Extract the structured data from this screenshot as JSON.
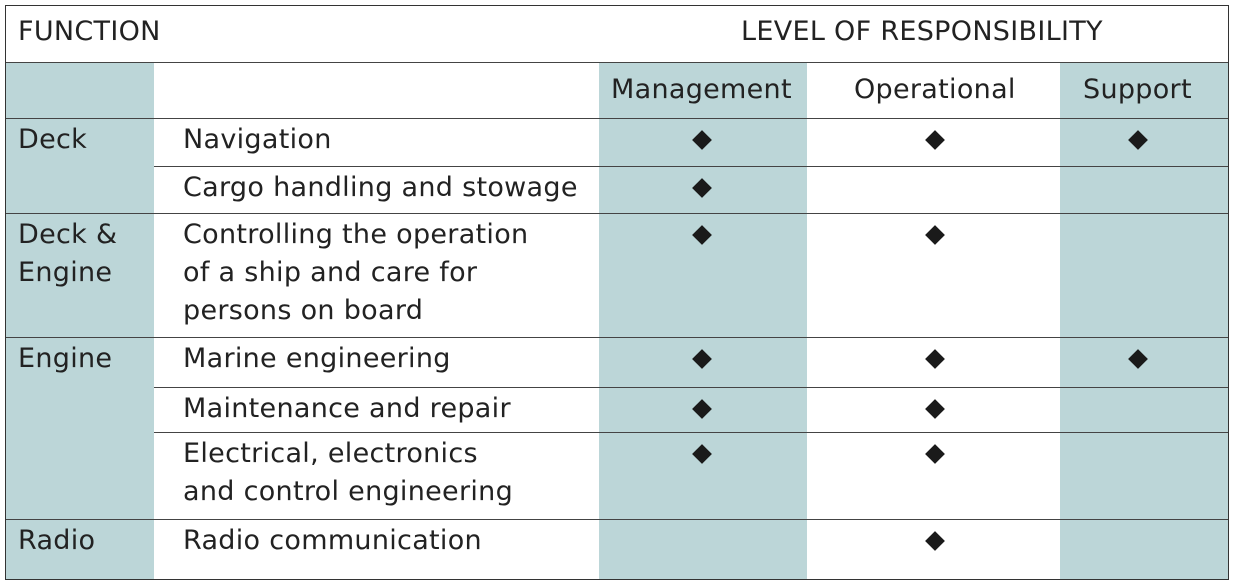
{
  "header": {
    "function_label": "FUNCTION",
    "level_label": "LEVEL OF RESPONSIBILITY",
    "columns": [
      "Management",
      "Operational",
      "Support"
    ]
  },
  "colors": {
    "shade": "#bcd6d8",
    "line": "#444444",
    "mark": "#1a1a1a"
  },
  "mark_icon": "diamond-icon",
  "groups": [
    {
      "name_lines": [
        "Deck"
      ]
    },
    {
      "name_lines": [
        "Deck &",
        "Engine"
      ]
    },
    {
      "name_lines": [
        "Engine"
      ]
    },
    {
      "name_lines": [
        "Radio"
      ]
    }
  ],
  "rows": [
    {
      "group": 0,
      "lines": [
        "Navigation"
      ],
      "management": true,
      "operational": true,
      "support": true
    },
    {
      "group": 0,
      "lines": [
        "Cargo handling and stowage"
      ],
      "management": true,
      "operational": false,
      "support": false
    },
    {
      "group": 1,
      "lines": [
        "Controlling the operation",
        "of a ship and care for",
        "persons on board"
      ],
      "management": true,
      "operational": true,
      "support": false
    },
    {
      "group": 2,
      "lines": [
        "Marine engineering"
      ],
      "management": true,
      "operational": true,
      "support": true
    },
    {
      "group": 2,
      "lines": [
        "Maintenance and repair"
      ],
      "management": true,
      "operational": true,
      "support": false
    },
    {
      "group": 2,
      "lines": [
        "Electrical, electronics",
        "and control engineering"
      ],
      "management": true,
      "operational": true,
      "support": false
    },
    {
      "group": 3,
      "lines": [
        "Radio communication"
      ],
      "management": false,
      "operational": true,
      "support": false
    }
  ]
}
